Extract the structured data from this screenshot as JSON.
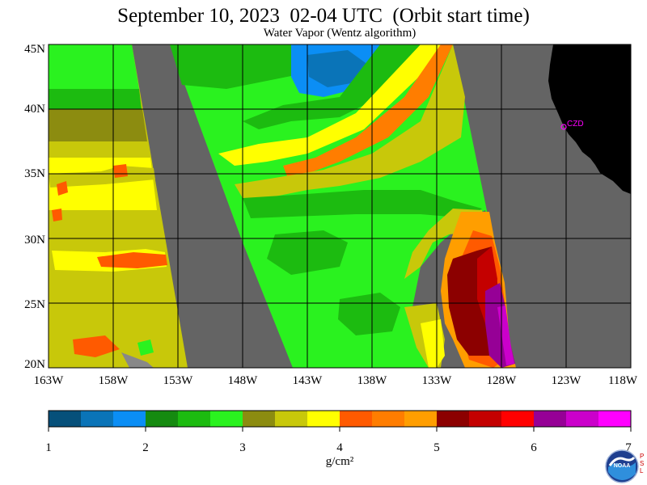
{
  "header": {
    "title": "September 10, 2023  02-04 UTC  (Orbit start time)",
    "subtitle": "Water Vapor (Wentz algorithm)"
  },
  "axes": {
    "lat_labels": [
      "45N",
      "40N",
      "35N",
      "30N",
      "25N",
      "20N"
    ],
    "lat_values": [
      45,
      40,
      35,
      30,
      25,
      20
    ],
    "lon_labels": [
      "163W",
      "158W",
      "153W",
      "148W",
      "143W",
      "138W",
      "133W",
      "128W",
      "123W",
      "118W"
    ],
    "lon_values": [
      -163,
      -158,
      -153,
      -148,
      -143,
      -138,
      -133,
      -128,
      -123,
      -118
    ],
    "lon_range": [
      -163,
      -118
    ],
    "lat_range": [
      20,
      45
    ]
  },
  "colorbar": {
    "tick_labels": [
      "1",
      "2",
      "3",
      "4",
      "5",
      "6",
      "7"
    ],
    "units": "g/cm²",
    "range": [
      1,
      7
    ],
    "colors": [
      "#06507a",
      "#0a74b8",
      "#0b8ef5",
      "#158a10",
      "#1cbb10",
      "#2af21f",
      "#8c8c10",
      "#c8c80a",
      "#ffff00",
      "#ff5a00",
      "#ff7d00",
      "#ff9e00",
      "#8c0000",
      "#c40000",
      "#ff0000",
      "#960096",
      "#cb00cb",
      "#ff00ff"
    ]
  },
  "map": {
    "nodata_color": "#646464",
    "land_color": "#000000",
    "grid_color": "#000000",
    "station_label": "CZD",
    "station_color": "#ff00ff"
  },
  "logo": {
    "name": "noaa-logo",
    "text": "NOAA"
  }
}
